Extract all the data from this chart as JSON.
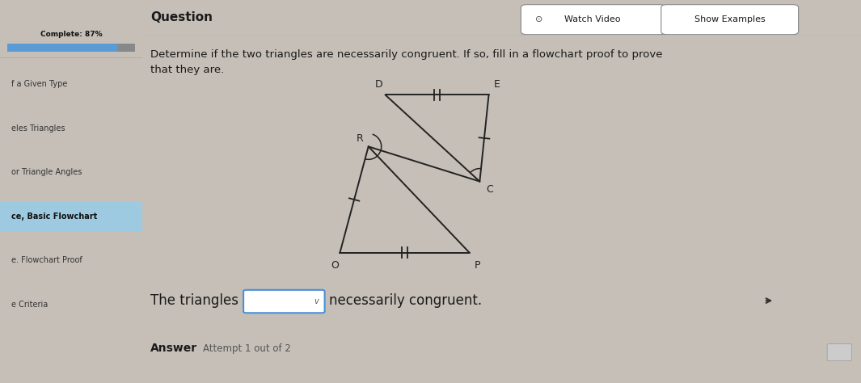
{
  "bg_left_color": "#c5bfb7",
  "bg_right_color": "#dedad4",
  "sidebar_color": "#ccc7bf",
  "title_text": "Question",
  "watch_video": "Watch Video",
  "show_examples": "Show Examples",
  "instruction_line1": "Determine if the two triangles are necessarily congruent. If so, fill in a flowchart proof to prove",
  "instruction_line2": "that they are.",
  "complete_label": "Complete: 87%",
  "sidebar_items": [
    "f a Given Type",
    "eles Triangles",
    "or Triangle Angles",
    "ce, Basic Flowchart",
    "e. Flowchart Proof",
    "e Criteria"
  ],
  "sidebar_highlight_index": 3,
  "sentence": "The triangles",
  "sentence2": "necessarily congruent.",
  "answer_label": "Answer",
  "attempt_label": "Attempt 1 out of 2",
  "tri1_O": [
    0.0,
    0.0
  ],
  "tri1_P": [
    1.0,
    0.0
  ],
  "tri1_R": [
    0.22,
    0.82
  ],
  "tri2_D": [
    0.35,
    1.22
  ],
  "tri2_E": [
    1.15,
    1.22
  ],
  "tri2_C": [
    1.08,
    0.55
  ],
  "font_color": "#1a1a1a",
  "triangle_color": "#222222"
}
